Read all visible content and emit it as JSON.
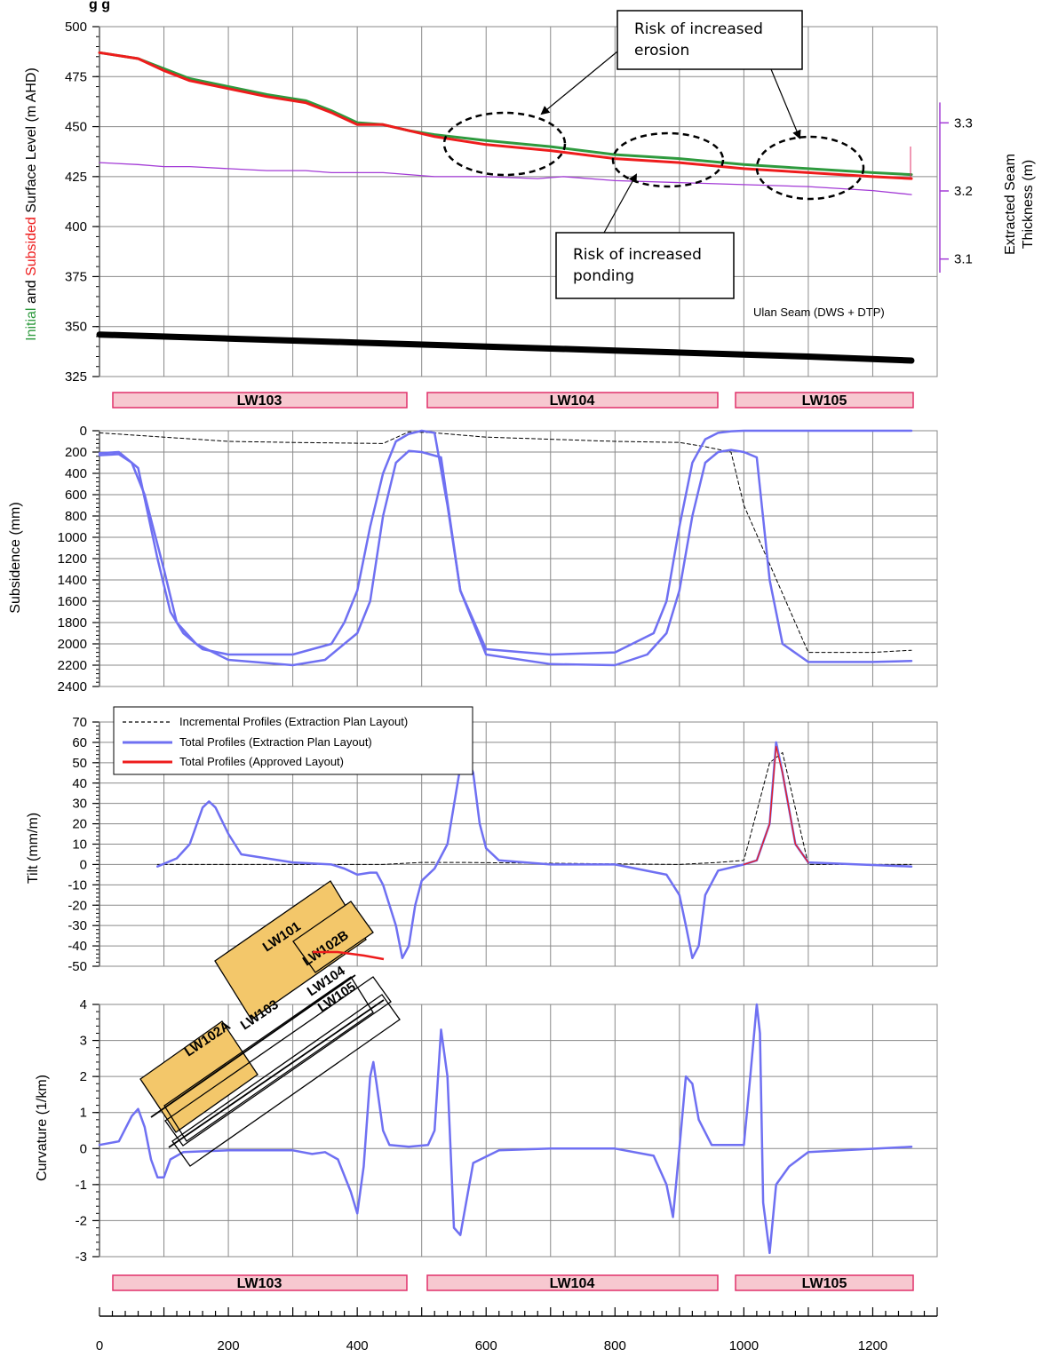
{
  "header": {
    "title_fragment": "g                    g"
  },
  "panels": {
    "surface": {
      "ylabel_initial": "Initial",
      "ylabel_and": " and ",
      "ylabel_subsided": "Subsided",
      "ylabel_rest": " Surface Level (m AHD)",
      "right_ylabel_line1": "Extracted Seam",
      "right_ylabel_line2": "Thickness (m)",
      "seam_label": "Ulan Seam (DWS + DTP)"
    },
    "subsidence": {
      "ylabel": "Subsidence (mm)"
    },
    "tilt": {
      "ylabel": "Tilt (mm/m)"
    },
    "curvature": {
      "ylabel": "Curvature (1/km)"
    }
  },
  "annotations": {
    "erosion_line1": "Risk of increased",
    "erosion_line2": "erosion",
    "ponding_line1": "Risk of increased",
    "ponding_line2": "ponding"
  },
  "legend": {
    "incremental": "Incremental Profiles (Extraction Plan Layout)",
    "total_ep": "Total Profiles (Extraction Plan Layout)",
    "total_approved": "Total Profiles (Approved Layout)"
  },
  "longwall_labels": [
    "LW103",
    "LW104",
    "LW105"
  ],
  "plan_labels": {
    "lw101": "LW101",
    "lw102b": "LW102B",
    "lw102a": "LW102A",
    "lw103": "LW103",
    "lw104": "LW104",
    "lw105": "LW105"
  },
  "colors": {
    "initial": "#2e9a3e",
    "subsided": "#ee1c1c",
    "total_ep": "#6f70f2",
    "seam": "#a33bd6",
    "pink_fill": "#f7c8d0",
    "pink_edge": "#e0306a",
    "yellow": "#f3c76a"
  },
  "chart_data": [
    {
      "type": "line",
      "xlim": [
        0,
        1300
      ],
      "ylim": [
        325,
        500
      ],
      "ylabel": "Initial and Subsided Surface Level (m AHD)",
      "y_ticks": [
        325,
        350,
        375,
        400,
        425,
        450,
        475,
        500
      ],
      "right_ylim": [
        3.05,
        3.35
      ],
      "right_y_ticks": [
        3.1,
        3.2,
        3.3
      ],
      "right_ylabel": "Extracted Seam Thickness (m)",
      "grid": true,
      "series": [
        {
          "x": [
            0,
            60,
            100,
            140,
            200,
            260,
            320,
            360,
            400,
            440,
            480,
            520,
            600,
            700,
            800,
            900,
            1000,
            1100,
            1200,
            1260
          ],
          "y": [
            487,
            484,
            479,
            474,
            470,
            466,
            463,
            458,
            452,
            451,
            448,
            446,
            443,
            440,
            436,
            434,
            431,
            429,
            427,
            426
          ]
        },
        {
          "x": [
            0,
            60,
            100,
            140,
            200,
            260,
            320,
            360,
            400,
            440,
            480,
            520,
            600,
            700,
            800,
            900,
            1000,
            1100,
            1200,
            1260
          ],
          "y": [
            487,
            484,
            478,
            473,
            469,
            465,
            462,
            457,
            451,
            451,
            448,
            445,
            441,
            438,
            434,
            432,
            429,
            427,
            425,
            424
          ]
        },
        {
          "x": [
            0,
            60,
            100,
            140,
            200,
            260,
            320,
            360,
            400,
            440,
            480,
            520,
            600,
            680,
            720,
            800,
            900,
            1000,
            1100,
            1200,
            1260
          ],
          "y": [
            432,
            431,
            430,
            430,
            429,
            428,
            428,
            427,
            427,
            427,
            426,
            425,
            425,
            424,
            425,
            423,
            422,
            421,
            420,
            418,
            416
          ]
        },
        {
          "x": [
            0,
            200,
            400,
            600,
            800,
            1000,
            1100,
            1260
          ],
          "y": [
            346,
            344,
            342,
            340,
            338,
            336,
            335,
            333
          ]
        }
      ]
    },
    {
      "type": "line",
      "xlim": [
        0,
        1300
      ],
      "ylim": [
        2400,
        0
      ],
      "ylabel": "Subsidence (mm)",
      "y_ticks": [
        0,
        200,
        400,
        600,
        800,
        1000,
        1200,
        1400,
        1600,
        1800,
        2000,
        2200,
        2400
      ],
      "grid": true,
      "series": [
        {
          "x": [
            0,
            100,
            200,
            300,
            440,
            480,
            520,
            600,
            700,
            800,
            900,
            940,
            980,
            1000,
            1100,
            1200,
            1260
          ],
          "y": [
            20,
            60,
            100,
            110,
            120,
            10,
            20,
            60,
            80,
            100,
            110,
            150,
            200,
            700,
            2080,
            2080,
            2060
          ]
        },
        {
          "x": [
            0,
            30,
            50,
            70,
            100,
            120,
            150,
            200,
            300,
            350,
            380,
            400,
            420,
            440,
            460,
            480,
            500,
            530,
            560,
            600,
            700,
            800,
            850,
            880,
            900,
            920,
            940,
            960,
            980,
            1000,
            1020,
            1040,
            1060,
            1100,
            1200,
            1260
          ],
          "y": [
            230,
            220,
            300,
            600,
            1300,
            1800,
            2000,
            2150,
            2200,
            2150,
            2000,
            1900,
            1600,
            800,
            300,
            190,
            200,
            250,
            1500,
            2100,
            2190,
            2200,
            2100,
            1900,
            1500,
            800,
            300,
            200,
            180,
            200,
            250,
            1400,
            2000,
            2170,
            2170,
            2160
          ]
        },
        {
          "x": [
            0,
            30,
            60,
            90,
            110,
            130,
            160,
            200,
            300,
            360,
            380,
            400,
            420,
            440,
            460,
            480,
            500,
            520,
            540,
            560,
            600,
            700,
            800,
            860,
            880,
            900,
            920,
            940,
            960,
            980,
            1000,
            1020,
            1040,
            1060,
            1100,
            1200,
            1260
          ],
          "y": [
            210,
            200,
            350,
            1200,
            1700,
            1900,
            2050,
            2100,
            2100,
            2000,
            1800,
            1500,
            900,
            400,
            100,
            30,
            0,
            20,
            700,
            1500,
            2050,
            2100,
            2080,
            1900,
            1600,
            900,
            300,
            80,
            20,
            5,
            0,
            0,
            0,
            0,
            0,
            0,
            0
          ]
        }
      ]
    },
    {
      "type": "line",
      "xlim": [
        0,
        1300
      ],
      "ylim": [
        -50,
        70
      ],
      "ylabel": "Tilt (mm/m)",
      "y_ticks": [
        -50,
        -40,
        -30,
        -20,
        -10,
        0,
        10,
        20,
        30,
        40,
        50,
        60,
        70
      ],
      "legend": "top-left",
      "grid": true,
      "series": [
        {
          "name": "Incremental Profiles (Extraction Plan Layout)",
          "x": [
            90,
            200,
            440,
            500,
            560,
            900,
            960,
            1000,
            1040,
            1060,
            1100,
            1260
          ],
          "y": [
            0,
            0,
            0,
            1,
            1,
            0,
            1,
            2,
            50,
            55,
            0,
            0
          ]
        },
        {
          "name": "Total Profiles (Extraction Plan Layout)",
          "x": [
            90,
            120,
            140,
            160,
            170,
            180,
            200,
            220,
            300,
            360,
            380,
            400,
            420,
            430,
            440,
            460,
            470,
            480,
            490,
            500,
            520,
            540,
            560,
            570,
            580,
            590,
            600,
            620,
            700,
            800,
            880,
            900,
            910,
            920,
            930,
            940,
            960,
            1000,
            1020,
            1040,
            1050,
            1060,
            1080,
            1100,
            1260
          ],
          "y": [
            -1,
            3,
            10,
            28,
            31,
            28,
            15,
            5,
            1,
            0,
            -2,
            -5,
            -4,
            -4,
            -10,
            -30,
            -46,
            -40,
            -20,
            -8,
            -2,
            10,
            48,
            53,
            45,
            20,
            8,
            2,
            0,
            0,
            -5,
            -15,
            -30,
            -46,
            -40,
            -15,
            -3,
            0,
            2,
            20,
            60,
            45,
            10,
            1,
            -1
          ]
        },
        {
          "name": "Total Profiles (Approved Layout)",
          "x": [
            1000,
            1020,
            1040,
            1050,
            1060,
            1080,
            1100
          ],
          "y": [
            0,
            2,
            20,
            58,
            45,
            10,
            1
          ]
        }
      ]
    },
    {
      "type": "line",
      "xlim": [
        0,
        1300
      ],
      "ylim": [
        -3,
        4
      ],
      "ylabel": "Curvature (1/km)",
      "y_ticks": [
        -3,
        -2,
        -1,
        0,
        1,
        2,
        3,
        4
      ],
      "x_ticks": [
        0,
        200,
        400,
        600,
        800,
        1000,
        1200
      ],
      "grid": true,
      "series": [
        {
          "x": [
            0,
            30,
            50,
            60,
            70,
            80,
            90,
            100,
            110,
            130,
            200,
            300,
            330,
            350,
            370,
            390,
            400,
            410,
            420,
            425,
            430,
            440,
            450,
            480,
            510,
            520,
            530,
            540,
            550,
            560,
            580,
            620,
            700,
            800,
            860,
            880,
            890,
            900,
            910,
            920,
            930,
            950,
            1000,
            1010,
            1020,
            1025,
            1030,
            1040,
            1050,
            1070,
            1100,
            1260
          ],
          "y": [
            0.1,
            0.2,
            0.9,
            1.1,
            0.6,
            -0.3,
            -0.8,
            -0.8,
            -0.3,
            -0.1,
            -0.05,
            -0.05,
            -0.15,
            -0.1,
            -0.3,
            -1.2,
            -1.8,
            -0.5,
            2,
            2.4,
            1.8,
            0.5,
            0.1,
            0.05,
            0.1,
            0.5,
            3.3,
            2,
            -2.2,
            -2.4,
            -0.4,
            -0.05,
            0,
            0,
            -0.2,
            -1,
            -1.9,
            0,
            2,
            1.8,
            0.8,
            0.1,
            0.1,
            2,
            4,
            3.2,
            -1.5,
            -2.9,
            -1,
            -0.5,
            -0.1,
            0.05
          ]
        }
      ]
    }
  ]
}
